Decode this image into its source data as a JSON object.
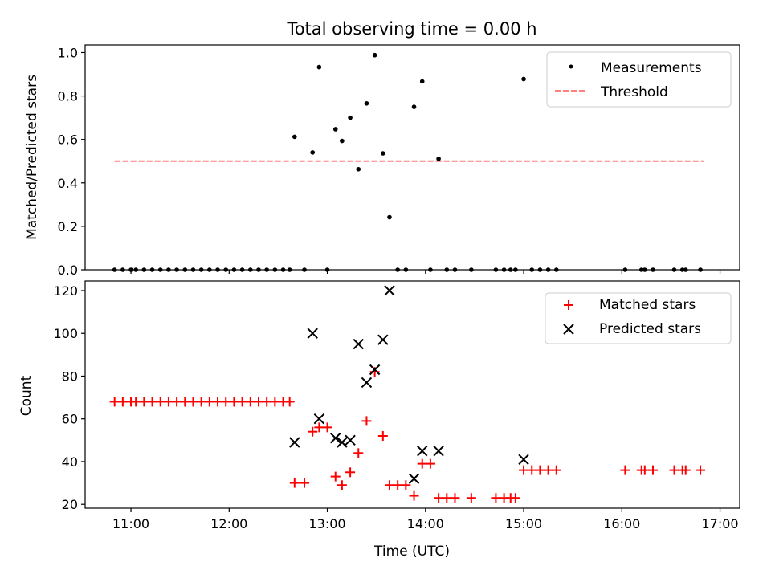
{
  "title": "Total observing time = 0.00 h",
  "chart_data": [
    {
      "type": "scatter",
      "ylabel": "Matched/Predicted stars",
      "ylim": [
        0,
        1.035
      ],
      "yticks": [
        "0.0",
        "0.2",
        "0.4",
        "0.6",
        "0.8",
        "1.0"
      ],
      "legend": {
        "placement": "top-right",
        "entries": [
          "Measurements",
          "Threshold"
        ]
      },
      "threshold": {
        "value": 0.5,
        "x_start": "10:50",
        "x_end": "16:50",
        "color": "#ff7f7f"
      },
      "series": [
        {
          "name": "Measurements",
          "color": "#000000",
          "points": [
            [
              "10:50",
              0
            ],
            [
              "10:55",
              0
            ],
            [
              "11:00",
              0
            ],
            [
              "11:03",
              0
            ],
            [
              "11:08",
              0
            ],
            [
              "11:13",
              0
            ],
            [
              "11:18",
              0
            ],
            [
              "11:23",
              0
            ],
            [
              "11:28",
              0
            ],
            [
              "11:33",
              0
            ],
            [
              "11:38",
              0
            ],
            [
              "11:43",
              0
            ],
            [
              "11:48",
              0
            ],
            [
              "11:53",
              0
            ],
            [
              "11:58",
              0
            ],
            [
              "12:03",
              0
            ],
            [
              "12:08",
              0
            ],
            [
              "12:13",
              0
            ],
            [
              "12:18",
              0
            ],
            [
              "12:23",
              0
            ],
            [
              "12:28",
              0
            ],
            [
              "12:33",
              0
            ],
            [
              "12:37",
              0
            ],
            [
              "12:40",
              0.612
            ],
            [
              "12:46",
              0
            ],
            [
              "12:51",
              0.54
            ],
            [
              "12:55",
              0.933
            ],
            [
              "13:00",
              0
            ],
            [
              "13:05",
              0.647
            ],
            [
              "13:09",
              0.593
            ],
            [
              "13:14",
              0.7
            ],
            [
              "13:19",
              0.463
            ],
            [
              "13:24",
              0.766
            ],
            [
              "13:29",
              0.988
            ],
            [
              "13:34",
              0.536
            ],
            [
              "13:38",
              0.242
            ],
            [
              "13:43",
              0
            ],
            [
              "13:48",
              0
            ],
            [
              "13:53",
              0.75
            ],
            [
              "13:58",
              0.867
            ],
            [
              "14:03",
              0
            ],
            [
              "14:08",
              0.511
            ],
            [
              "14:13",
              0
            ],
            [
              "14:18",
              0
            ],
            [
              "14:28",
              0
            ],
            [
              "14:43",
              0
            ],
            [
              "14:48",
              0
            ],
            [
              "14:52",
              0
            ],
            [
              "14:55",
              0
            ],
            [
              "15:00",
              0.878
            ],
            [
              "15:05",
              0
            ],
            [
              "15:10",
              0
            ],
            [
              "15:15",
              0
            ],
            [
              "15:20",
              0
            ],
            [
              "16:02",
              0
            ],
            [
              "16:12",
              0
            ],
            [
              "16:14",
              0
            ],
            [
              "16:19",
              0
            ],
            [
              "16:32",
              0
            ],
            [
              "16:37",
              0
            ],
            [
              "16:39",
              0
            ],
            [
              "16:48",
              0
            ]
          ]
        }
      ]
    },
    {
      "type": "scatter",
      "xlabel": "Time (UTC)",
      "ylabel": "Count",
      "ylim": [
        18.2,
        124.5
      ],
      "xlim": [
        "10:32",
        "17:12"
      ],
      "xticks": [
        "11:00",
        "12:00",
        "13:00",
        "14:00",
        "15:00",
        "16:00",
        "17:00"
      ],
      "yticks": [
        "20",
        "40",
        "60",
        "80",
        "100",
        "120"
      ],
      "legend": {
        "placement": "top-right",
        "entries": [
          "Matched stars",
          "Predicted stars"
        ]
      },
      "series": [
        {
          "name": "Matched stars",
          "color": "#ff0000",
          "points": [
            [
              "10:50",
              68
            ],
            [
              "10:55",
              68
            ],
            [
              "11:00",
              68
            ],
            [
              "11:03",
              68
            ],
            [
              "11:08",
              68
            ],
            [
              "11:13",
              68
            ],
            [
              "11:18",
              68
            ],
            [
              "11:23",
              68
            ],
            [
              "11:28",
              68
            ],
            [
              "11:33",
              68
            ],
            [
              "11:38",
              68
            ],
            [
              "11:43",
              68
            ],
            [
              "11:48",
              68
            ],
            [
              "11:53",
              68
            ],
            [
              "11:58",
              68
            ],
            [
              "12:03",
              68
            ],
            [
              "12:08",
              68
            ],
            [
              "12:13",
              68
            ],
            [
              "12:18",
              68
            ],
            [
              "12:23",
              68
            ],
            [
              "12:28",
              68
            ],
            [
              "12:33",
              68
            ],
            [
              "12:37",
              68
            ],
            [
              "12:40",
              30
            ],
            [
              "12:46",
              30
            ],
            [
              "12:51",
              54
            ],
            [
              "12:55",
              56
            ],
            [
              "13:00",
              56
            ],
            [
              "13:05",
              33
            ],
            [
              "13:09",
              29
            ],
            [
              "13:14",
              35
            ],
            [
              "13:19",
              44
            ],
            [
              "13:24",
              59
            ],
            [
              "13:29",
              82
            ],
            [
              "13:34",
              52
            ],
            [
              "13:38",
              29
            ],
            [
              "13:43",
              29
            ],
            [
              "13:48",
              29
            ],
            [
              "13:53",
              24
            ],
            [
              "13:58",
              39
            ],
            [
              "14:03",
              39
            ],
            [
              "14:08",
              23
            ],
            [
              "14:13",
              23
            ],
            [
              "14:18",
              23
            ],
            [
              "14:28",
              23
            ],
            [
              "14:43",
              23
            ],
            [
              "14:48",
              23
            ],
            [
              "14:52",
              23
            ],
            [
              "14:55",
              23
            ],
            [
              "15:00",
              36
            ],
            [
              "15:05",
              36
            ],
            [
              "15:10",
              36
            ],
            [
              "15:15",
              36
            ],
            [
              "15:20",
              36
            ],
            [
              "16:02",
              36
            ],
            [
              "16:12",
              36
            ],
            [
              "16:14",
              36
            ],
            [
              "16:19",
              36
            ],
            [
              "16:32",
              36
            ],
            [
              "16:37",
              36
            ],
            [
              "16:39",
              36
            ],
            [
              "16:48",
              36
            ]
          ]
        },
        {
          "name": "Predicted stars",
          "color": "#000000",
          "points": [
            [
              "12:40",
              49
            ],
            [
              "12:51",
              100
            ],
            [
              "12:55",
              60
            ],
            [
              "13:05",
              51
            ],
            [
              "13:09",
              49
            ],
            [
              "13:14",
              50
            ],
            [
              "13:19",
              95
            ],
            [
              "13:24",
              77
            ],
            [
              "13:29",
              83
            ],
            [
              "13:34",
              97
            ],
            [
              "13:38",
              120
            ],
            [
              "13:53",
              32
            ],
            [
              "13:58",
              45
            ],
            [
              "14:08",
              45
            ],
            [
              "15:00",
              41
            ]
          ]
        }
      ]
    }
  ]
}
